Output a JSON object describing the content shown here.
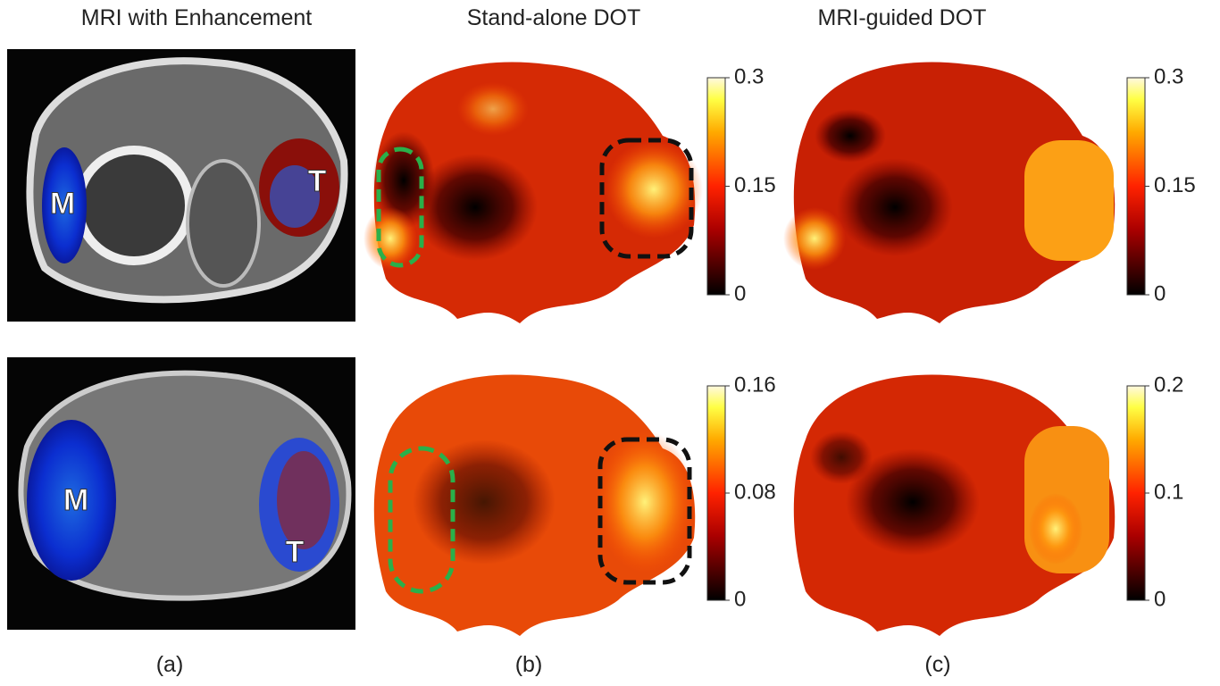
{
  "columns": [
    {
      "title": "MRI with Enhancement",
      "label": "(a)"
    },
    {
      "title": "Stand-alone DOT",
      "label": "(b)"
    },
    {
      "title": "MRI-guided DOT",
      "label": "(c)"
    }
  ],
  "mri_labels": [
    [
      "M",
      "T"
    ],
    [
      "M",
      "T"
    ]
  ],
  "colorbars": [
    {
      "ticks": [
        0,
        0.15,
        0.3
      ]
    },
    {
      "ticks": [
        0,
        0.15,
        0.3
      ]
    },
    {
      "ticks": [
        0,
        0.08,
        0.16
      ]
    },
    {
      "ticks": [
        0,
        0.1,
        0.2
      ]
    }
  ]
}
